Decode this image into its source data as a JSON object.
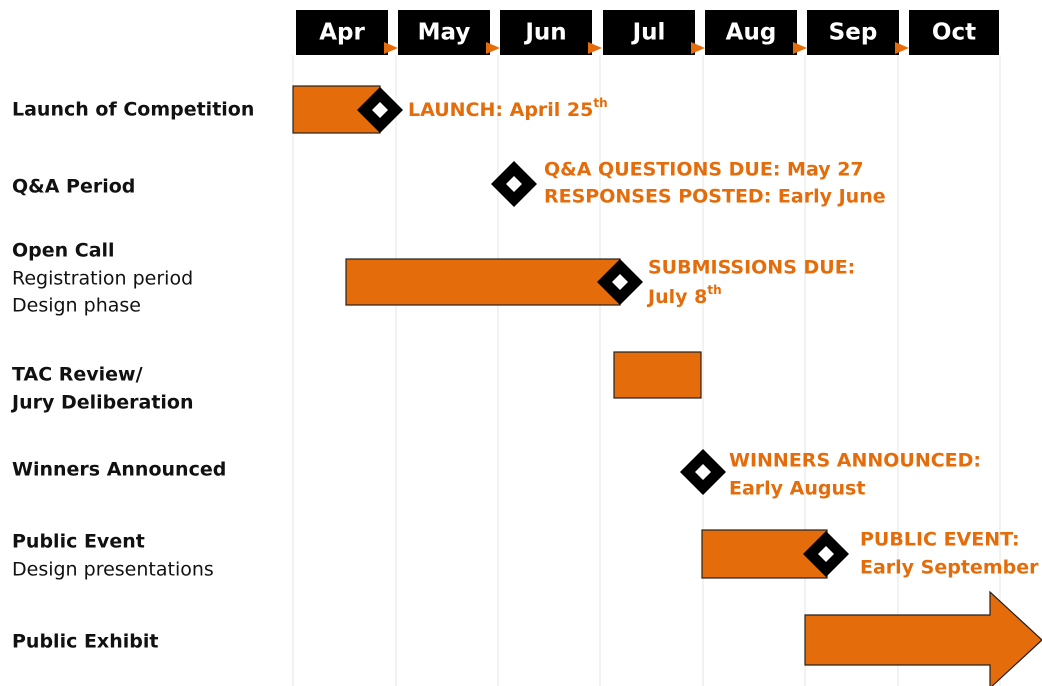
{
  "months": [
    "Apr",
    "May",
    "Jun",
    "Jul",
    "Aug",
    "Sep",
    "Oct"
  ],
  "rows": [
    {
      "title": "Launch of Competition"
    },
    {
      "title": "Q&A Period"
    },
    {
      "title": "Open Call",
      "lines": [
        "Registration period",
        "Design phase"
      ]
    },
    {
      "title_lines": [
        "TAC Review/",
        "Jury Deliberation"
      ]
    },
    {
      "title": "Winners Announced"
    },
    {
      "title": "Public Event",
      "lines": [
        "Design presentations"
      ]
    },
    {
      "title": "Public Exhibit"
    }
  ],
  "notes": {
    "launch": {
      "text": "LAUNCH: April 25",
      "sup": "th"
    },
    "qa": [
      "Q&A QUESTIONS DUE: May 27",
      "RESPONSES POSTED: Early June"
    ],
    "submissions": {
      "line1": "SUBMISSIONS DUE:",
      "line2": "July 8",
      "sup": "th"
    },
    "winners": [
      "WINNERS ANNOUNCED:",
      "Early August"
    ],
    "event": [
      "PUBLIC EVENT:",
      "Early September"
    ]
  }
}
